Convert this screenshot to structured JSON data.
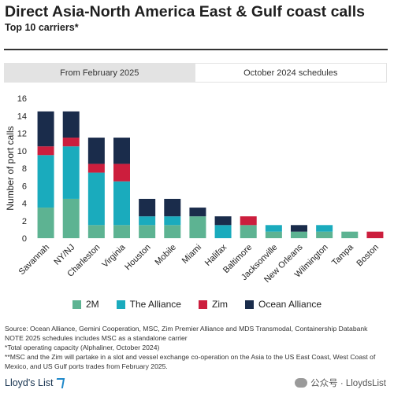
{
  "header": {
    "title": "Direct Asia-North America East & Gulf coast calls",
    "subtitle": "Top 10 carriers*"
  },
  "tabs": [
    {
      "label": "From February 2025",
      "active": true
    },
    {
      "label": "October 2024 schedules",
      "active": false
    }
  ],
  "colors": {
    "2M": "#5db392",
    "The Alliance": "#1aabbd",
    "Zim": "#cc1e3d",
    "Ocean Alliance": "#1a2c4b",
    "tab_active": "#e3e3e3"
  },
  "chart_data": {
    "type": "bar",
    "stacked": true,
    "ylabel": "Number of port calls",
    "ylim": [
      0,
      16
    ],
    "yticks": [
      0,
      2,
      4,
      6,
      8,
      10,
      12,
      14,
      16
    ],
    "grid": false,
    "legend_position": "bottom",
    "categories": [
      "Savannah",
      "NY/NJ",
      "Charleston",
      "Virginia",
      "Houston",
      "Mobile",
      "Miami",
      "Halifax",
      "Baltimore",
      "Jacksonville",
      "New Orleans",
      "Wilmington",
      "Tampa",
      "Boston"
    ],
    "series": [
      {
        "name": "2M",
        "color": "#5db392",
        "values": [
          3.5,
          4.5,
          1.5,
          1.5,
          1.5,
          1.5,
          2.5,
          0,
          1.5,
          0.75,
          0.75,
          0.75,
          0.75,
          0
        ]
      },
      {
        "name": "The Alliance",
        "color": "#1aabbd",
        "values": [
          6,
          6,
          6,
          5,
          1,
          1,
          0,
          1.5,
          0,
          0.75,
          0,
          0.75,
          0,
          0
        ]
      },
      {
        "name": "Zim",
        "color": "#cc1e3d",
        "values": [
          1,
          1,
          1,
          2,
          0,
          0,
          0,
          0,
          1,
          0,
          0,
          0,
          0,
          0.75
        ]
      },
      {
        "name": "Ocean Alliance",
        "color": "#1a2c4b",
        "values": [
          4,
          3,
          3,
          3,
          2,
          2,
          1,
          1,
          0,
          0,
          0.75,
          0,
          0,
          0
        ]
      }
    ]
  },
  "footer": {
    "line1": "Source: Ocean Alliance, Gemini Cooperation, MSC, Zim Premier Alliance and MDS Transmodal, Containership Databank",
    "line2": "NOTE 2025 schedules includes MSC as a standalone carrier",
    "line3": "*Total operating capacity (Alphaliner, October 2024)",
    "line4": "**MSC and the Zim will partake in a slot and vessel exchange co-operation on the Asia to the US East Coast, West Coast of",
    "line5": "Mexico, and US Gulf ports trades from February 2025."
  },
  "branding": {
    "logo_text": "Lloyd's List",
    "watermark": "公众号 · LloydsList"
  }
}
